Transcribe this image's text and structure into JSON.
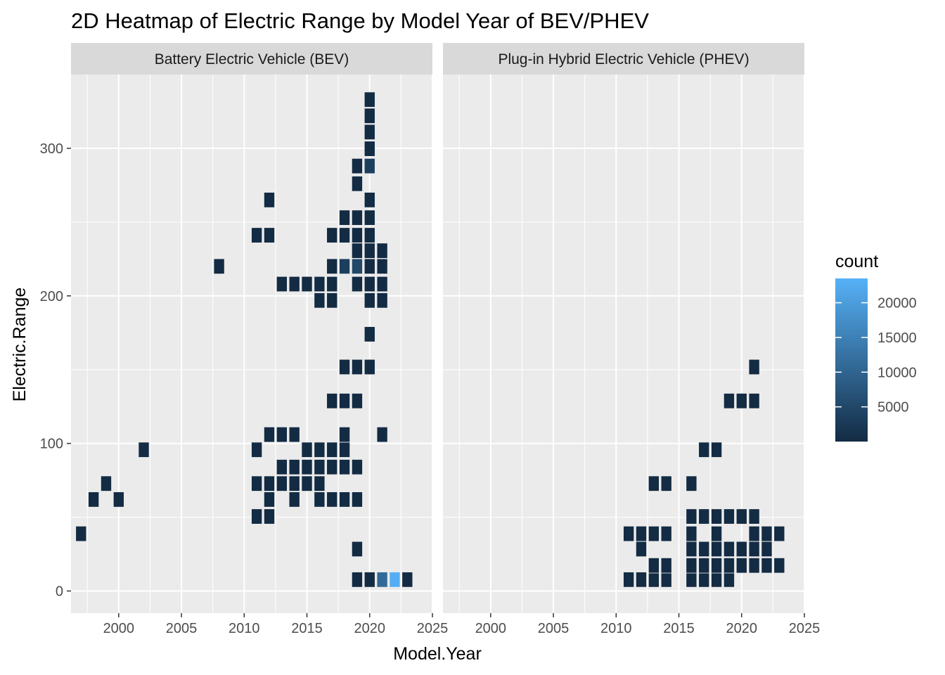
{
  "chart_data": {
    "type": "heatmap",
    "title": "2D Heatmap of Electric Range by Model Year of BEV/PHEV",
    "xlabel": "Model.Year",
    "ylabel": "Electric.Range",
    "xlim": [
      1996.2,
      2025
    ],
    "ylim": [
      -15,
      350
    ],
    "x_ticks": [
      2000,
      2005,
      2010,
      2015,
      2020,
      2025
    ],
    "y_ticks": [
      0,
      100,
      200,
      300
    ],
    "bin_width_x": 0.85,
    "bin_width_y": 10.3,
    "grid": true,
    "legend": {
      "title": "count",
      "position": "right",
      "ticks": [
        5000,
        10000,
        15000,
        20000
      ],
      "range": [
        1,
        23500
      ],
      "color_low": "#132B43",
      "color_high": "#56B1F7"
    },
    "panels": [
      {
        "name": "Battery Electric Vehicle (BEV)",
        "cells": [
          [
            1997,
            38.8,
            1
          ],
          [
            1998,
            62.0,
            1
          ],
          [
            1999,
            72.8,
            1
          ],
          [
            2000,
            62.0,
            1
          ],
          [
            2002,
            95.7,
            1
          ],
          [
            2008,
            220.0,
            1
          ],
          [
            2011,
            50.5,
            1
          ],
          [
            2011,
            72.8,
            1
          ],
          [
            2011,
            95.7,
            1
          ],
          [
            2011,
            241.1,
            1
          ],
          [
            2012,
            50.5,
            1
          ],
          [
            2012,
            62.0,
            1
          ],
          [
            2012,
            72.8,
            1
          ],
          [
            2012,
            106.0,
            1
          ],
          [
            2012,
            241.1,
            1
          ],
          [
            2012,
            265.0,
            1
          ],
          [
            2013,
            72.8,
            1
          ],
          [
            2013,
            84.0,
            1
          ],
          [
            2013,
            106.0,
            1
          ],
          [
            2013,
            208.0,
            1
          ],
          [
            2014,
            62.0,
            1
          ],
          [
            2014,
            72.8,
            1
          ],
          [
            2014,
            84.0,
            1
          ],
          [
            2014,
            106.0,
            1
          ],
          [
            2014,
            208.0,
            1
          ],
          [
            2015,
            72.8,
            1
          ],
          [
            2015,
            84.0,
            1
          ],
          [
            2015,
            95.7,
            1
          ],
          [
            2015,
            208.0,
            1
          ],
          [
            2016,
            62.0,
            1
          ],
          [
            2016,
            72.8,
            1
          ],
          [
            2016,
            84.0,
            1
          ],
          [
            2016,
            95.7,
            1
          ],
          [
            2016,
            196.9,
            1
          ],
          [
            2016,
            208.0,
            1
          ],
          [
            2017,
            62.0,
            1
          ],
          [
            2017,
            84.0,
            1
          ],
          [
            2017,
            95.7,
            1
          ],
          [
            2017,
            128.8,
            1
          ],
          [
            2017,
            196.9,
            1
          ],
          [
            2017,
            208.0,
            1
          ],
          [
            2017,
            220.0,
            1
          ],
          [
            2017,
            241.1,
            1
          ],
          [
            2018,
            62.0,
            1
          ],
          [
            2018,
            84.0,
            1
          ],
          [
            2018,
            95.7,
            1
          ],
          [
            2018,
            106.0,
            1
          ],
          [
            2018,
            128.8,
            1
          ],
          [
            2018,
            151.8,
            1
          ],
          [
            2018,
            220.0,
            3500
          ],
          [
            2018,
            241.1,
            1
          ],
          [
            2018,
            253.0,
            1
          ],
          [
            2019,
            7.7,
            1
          ],
          [
            2019,
            28.4,
            1
          ],
          [
            2019,
            62.0,
            1
          ],
          [
            2019,
            84.0,
            1
          ],
          [
            2019,
            128.8,
            1
          ],
          [
            2019,
            151.8,
            1
          ],
          [
            2019,
            208.0,
            1
          ],
          [
            2019,
            220.0,
            5000
          ],
          [
            2019,
            230.6,
            1
          ],
          [
            2019,
            241.1,
            1
          ],
          [
            2019,
            253.0,
            1
          ],
          [
            2019,
            276.0,
            1
          ],
          [
            2019,
            288.0,
            1
          ],
          [
            2020,
            7.7,
            1
          ],
          [
            2020,
            151.8,
            1
          ],
          [
            2020,
            174.0,
            1
          ],
          [
            2020,
            196.9,
            1
          ],
          [
            2020,
            208.0,
            1
          ],
          [
            2020,
            220.0,
            1
          ],
          [
            2020,
            230.6,
            1
          ],
          [
            2020,
            241.1,
            1
          ],
          [
            2020,
            253.0,
            1
          ],
          [
            2020,
            265.0,
            1
          ],
          [
            2020,
            288.0,
            3500
          ],
          [
            2020,
            299.7,
            1
          ],
          [
            2020,
            311.0,
            1
          ],
          [
            2020,
            322.0,
            1
          ],
          [
            2020,
            333.0,
            1
          ],
          [
            2021,
            7.7,
            11000
          ],
          [
            2021,
            106.0,
            1
          ],
          [
            2021,
            196.9,
            1
          ],
          [
            2021,
            208.0,
            1
          ],
          [
            2021,
            220.0,
            1
          ],
          [
            2021,
            230.6,
            1
          ],
          [
            2022,
            7.7,
            23000
          ],
          [
            2023,
            7.7,
            1
          ]
        ]
      },
      {
        "name": "Plug-in Hybrid Electric Vehicle (PHEV)",
        "cells": [
          [
            2011,
            7.7,
            1
          ],
          [
            2011,
            38.8,
            1
          ],
          [
            2012,
            7.7,
            1
          ],
          [
            2012,
            28.4,
            1
          ],
          [
            2012,
            38.8,
            1
          ],
          [
            2013,
            7.7,
            1
          ],
          [
            2013,
            17.3,
            1
          ],
          [
            2013,
            38.8,
            1
          ],
          [
            2013,
            72.8,
            1
          ],
          [
            2014,
            7.7,
            1
          ],
          [
            2014,
            17.3,
            1
          ],
          [
            2014,
            38.8,
            1
          ],
          [
            2014,
            72.8,
            1
          ],
          [
            2016,
            7.7,
            1
          ],
          [
            2016,
            17.3,
            1
          ],
          [
            2016,
            28.4,
            1
          ],
          [
            2016,
            38.8,
            1
          ],
          [
            2016,
            50.5,
            1
          ],
          [
            2016,
            72.8,
            1
          ],
          [
            2017,
            7.7,
            1
          ],
          [
            2017,
            17.3,
            1
          ],
          [
            2017,
            28.4,
            1
          ],
          [
            2017,
            50.5,
            1
          ],
          [
            2017,
            95.7,
            1
          ],
          [
            2018,
            7.7,
            1
          ],
          [
            2018,
            17.3,
            1
          ],
          [
            2018,
            28.4,
            1
          ],
          [
            2018,
            38.8,
            1
          ],
          [
            2018,
            50.5,
            1
          ],
          [
            2018,
            95.7,
            1
          ],
          [
            2019,
            7.7,
            1
          ],
          [
            2019,
            17.3,
            1
          ],
          [
            2019,
            28.4,
            1
          ],
          [
            2019,
            50.5,
            1
          ],
          [
            2019,
            128.8,
            1
          ],
          [
            2020,
            17.3,
            1
          ],
          [
            2020,
            28.4,
            1
          ],
          [
            2020,
            50.5,
            1
          ],
          [
            2020,
            128.8,
            1
          ],
          [
            2021,
            17.3,
            1
          ],
          [
            2021,
            28.4,
            1
          ],
          [
            2021,
            38.8,
            1
          ],
          [
            2021,
            50.5,
            1
          ],
          [
            2021,
            128.8,
            1
          ],
          [
            2021,
            151.8,
            1
          ],
          [
            2022,
            17.3,
            1
          ],
          [
            2022,
            28.4,
            1
          ],
          [
            2022,
            38.8,
            1
          ],
          [
            2023,
            17.3,
            1
          ],
          [
            2023,
            38.8,
            1
          ]
        ]
      }
    ]
  }
}
